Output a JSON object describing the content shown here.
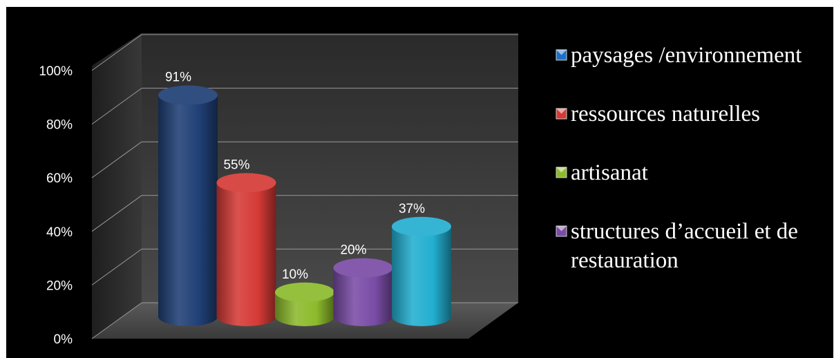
{
  "chart_data": {
    "type": "bar",
    "style": "3d-cylinder",
    "categories": [
      "paysages /environnement",
      "ressources naturelles",
      "artisanat",
      "structures d’accueil et de restauration",
      ""
    ],
    "values": [
      91,
      55,
      10,
      20,
      37
    ],
    "data_labels": [
      "91%",
      "55%",
      "10%",
      "20%",
      "37%"
    ],
    "colors": [
      "#1f3f75",
      "#d53a36",
      "#8cba2c",
      "#7a4ca6",
      "#23aed0"
    ],
    "y_ticks": [
      "0%",
      "20%",
      "40%",
      "60%",
      "80%",
      "100%"
    ],
    "ylim": [
      0,
      100
    ],
    "grid": true,
    "legend_position": "right",
    "legend": [
      {
        "lines": [
          "paysages /environnement"
        ],
        "color": "#1f6fc8"
      },
      {
        "lines": [
          "ressources naturelles"
        ],
        "color": "#d53a36"
      },
      {
        "lines": [
          "artisanat"
        ],
        "color": "#8cba2c"
      },
      {
        "lines": [
          "structures d’accueil et de",
          "restauration"
        ],
        "color": "#7a4ca6"
      }
    ]
  }
}
